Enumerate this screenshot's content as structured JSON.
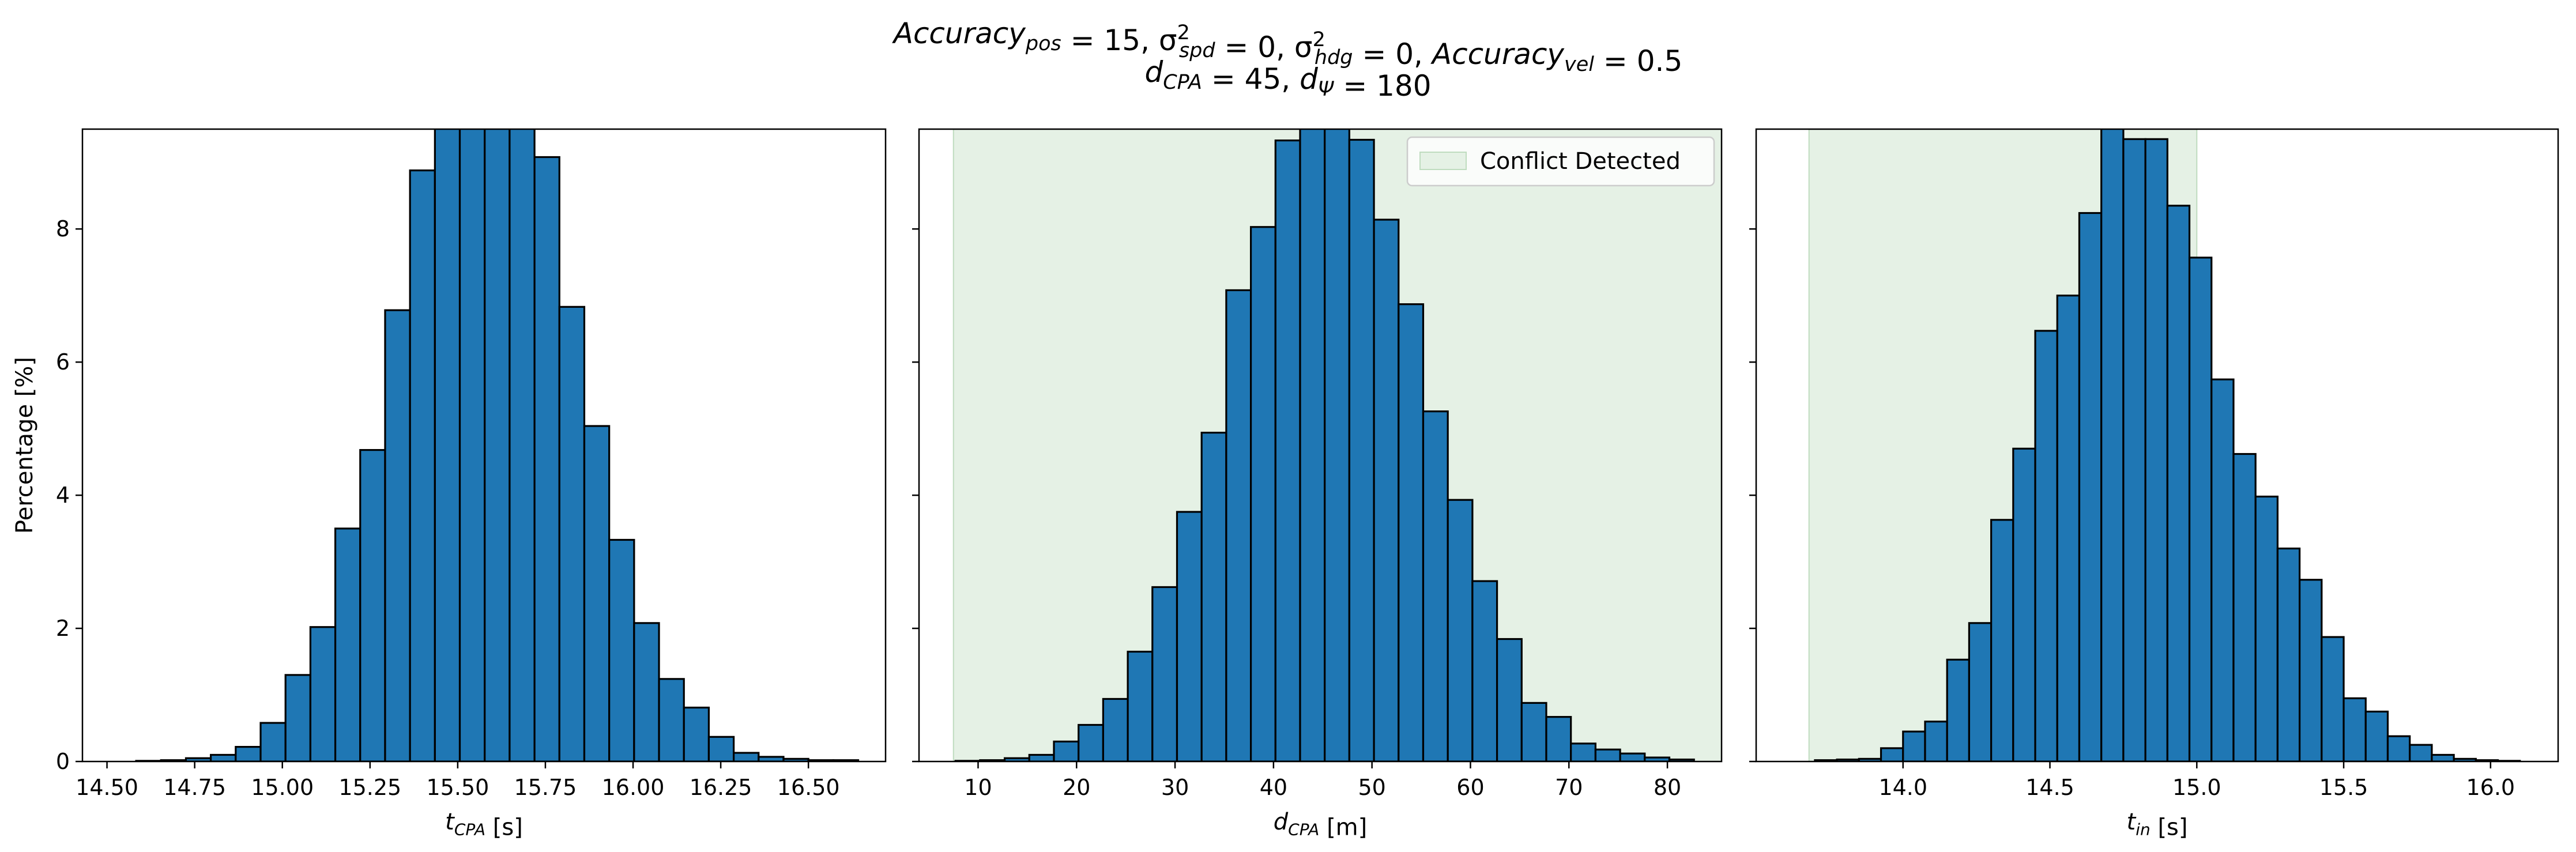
{
  "title": {
    "line1": "Accuracy_pos = 15, σ²_spd = 0, σ²_hdg = 0, Accuracy_vel = 0.5",
    "line2": "d_CPA = 45, d_Ψ = 180"
  },
  "colors": {
    "bar_fill": "#1f77b4",
    "bar_edge": "#000000",
    "shade_fill": "#e5f1e5",
    "shade_edge": "#bfdcbf"
  },
  "chart_data": [
    {
      "type": "bar",
      "subtype": "histogram",
      "xlabel": "t_CPA [s]",
      "ylabel": "Percentage [%]",
      "xlim": [
        14.43,
        16.72
      ],
      "ylim": [
        0,
        9.5
      ],
      "xticks": [
        14.5,
        14.75,
        15.0,
        15.25,
        15.5,
        15.75,
        16.0,
        16.25,
        16.5
      ],
      "xtick_labels": [
        "14.50",
        "14.75",
        "15.00",
        "15.25",
        "15.50",
        "15.75",
        "16.00",
        "16.25",
        "16.50"
      ],
      "yticks": [
        0,
        2,
        4,
        6,
        8
      ],
      "ytick_labels": [
        "0",
        "2",
        "4",
        "6",
        "8"
      ],
      "bin_edges": [
        14.583,
        14.654,
        14.725,
        14.796,
        14.867,
        14.938,
        15.009,
        15.08,
        15.151,
        15.222,
        15.293,
        15.364,
        15.435,
        15.506,
        15.577,
        15.648,
        15.719,
        15.79,
        15.861,
        15.932,
        16.003,
        16.074,
        16.145,
        16.216,
        16.287,
        16.358,
        16.429,
        16.5,
        16.571,
        16.642
      ],
      "values": [
        0.01,
        0.02,
        0.05,
        0.1,
        0.22,
        0.58,
        1.3,
        2.02,
        3.5,
        4.68,
        6.78,
        8.88,
        10.3,
        11.3,
        11.3,
        10.4,
        9.08,
        6.83,
        5.04,
        3.33,
        2.08,
        1.24,
        0.81,
        0.37,
        0.13,
        0.07,
        0.04,
        0.02,
        0.02
      ]
    },
    {
      "type": "bar",
      "subtype": "histogram",
      "xlabel": "d_CPA [m]",
      "xlim": [
        4.0,
        85.5
      ],
      "ylim": [
        0,
        9.5
      ],
      "xticks": [
        10,
        20,
        30,
        40,
        50,
        60,
        70,
        80
      ],
      "xtick_labels": [
        "10",
        "20",
        "30",
        "40",
        "50",
        "60",
        "70",
        "80"
      ],
      "shaded_region": [
        7.5,
        85.5
      ],
      "legend": {
        "label": "Conflict Detected",
        "position": "upper right"
      },
      "bin_edges": [
        7.7,
        10.2,
        12.7,
        15.2,
        17.7,
        20.2,
        22.7,
        25.2,
        27.7,
        30.2,
        32.7,
        35.2,
        37.7,
        40.2,
        42.7,
        45.2,
        47.7,
        50.2,
        52.7,
        55.2,
        57.7,
        60.2,
        62.7,
        65.2,
        67.7,
        70.2,
        72.7,
        75.2,
        77.7,
        80.2,
        82.7
      ],
      "values": [
        0.01,
        0.02,
        0.05,
        0.1,
        0.3,
        0.55,
        0.94,
        1.65,
        2.62,
        3.75,
        4.94,
        7.08,
        8.03,
        9.33,
        10.05,
        9.9,
        9.34,
        8.14,
        6.87,
        5.26,
        3.93,
        2.71,
        1.84,
        0.88,
        0.67,
        0.27,
        0.18,
        0.12,
        0.06,
        0.03
      ]
    },
    {
      "type": "bar",
      "subtype": "histogram",
      "xlabel": "t_in [s]",
      "xlim": [
        13.5,
        16.23
      ],
      "ylim": [
        0,
        9.5
      ],
      "xticks": [
        14.0,
        14.5,
        15.0,
        15.5,
        16.0
      ],
      "xtick_labels": [
        "14.0",
        "14.5",
        "15.0",
        "15.5",
        "16.0"
      ],
      "shaded_region": [
        13.68,
        15.0
      ],
      "bin_edges": [
        13.7,
        13.775,
        13.85,
        13.925,
        14.0,
        14.075,
        14.15,
        14.225,
        14.3,
        14.375,
        14.45,
        14.525,
        14.6,
        14.675,
        14.75,
        14.825,
        14.9,
        14.975,
        15.05,
        15.125,
        15.2,
        15.275,
        15.35,
        15.425,
        15.5,
        15.575,
        15.65,
        15.725,
        15.8,
        15.875,
        15.95,
        16.025,
        16.1
      ],
      "values": [
        0.02,
        0.03,
        0.04,
        0.2,
        0.45,
        0.6,
        1.53,
        2.08,
        3.63,
        4.7,
        6.47,
        7.0,
        8.24,
        9.52,
        9.35,
        9.35,
        8.35,
        7.57,
        5.74,
        4.62,
        3.98,
        3.2,
        2.73,
        1.87,
        0.95,
        0.75,
        0.38,
        0.25,
        0.1,
        0.04,
        0.02,
        0.01
      ]
    }
  ]
}
